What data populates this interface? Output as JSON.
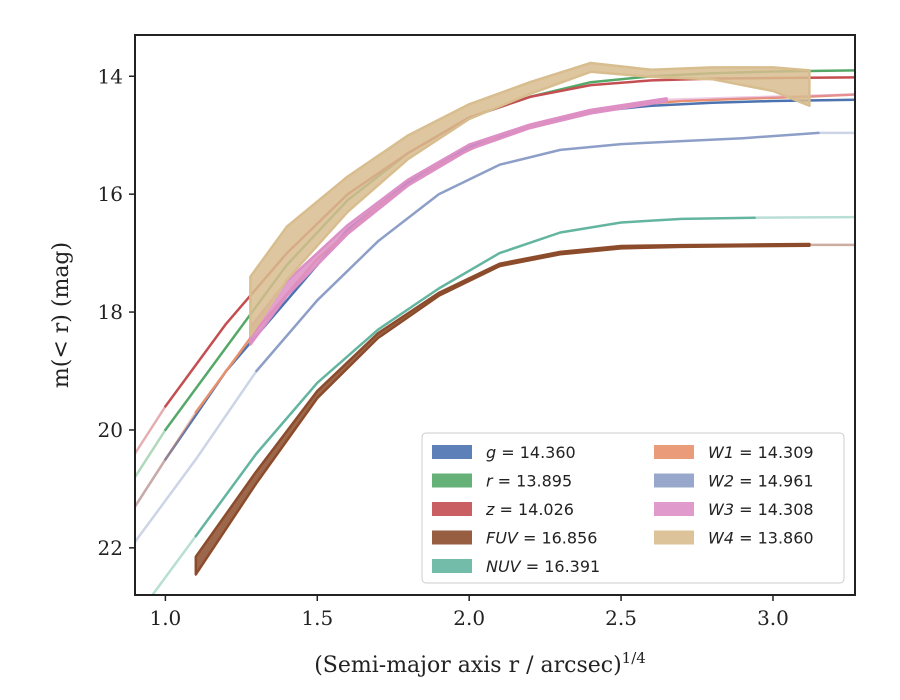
{
  "chart_data": {
    "type": "line",
    "xlabel": "(Semi-major axis r / arcsec)",
    "xlabel_sup": "1/4",
    "ylabel": "m(< r) (mag)",
    "xlim": [
      0.9,
      3.27
    ],
    "ylim": [
      22.8,
      13.3
    ],
    "y_inverted": true,
    "grid": false,
    "legend_position": "lower-right",
    "legend_columns": 2,
    "x_ticks": [
      "1.0",
      "1.5",
      "2.0",
      "2.5",
      "3.0"
    ],
    "y_ticks": [
      "14",
      "16",
      "18",
      "20",
      "22"
    ],
    "series": [
      {
        "name": "g = 14.360",
        "label_var": "g",
        "label_val": "14.360",
        "color": "#4c72b0",
        "x": [
          0.9,
          1.0,
          1.2,
          1.4,
          1.6,
          1.8,
          2.0,
          2.2,
          2.4,
          2.6,
          2.8,
          3.0,
          3.27
        ],
        "y": [
          21.3,
          20.5,
          19.0,
          17.8,
          16.6,
          15.8,
          15.2,
          14.85,
          14.6,
          14.5,
          14.45,
          14.42,
          14.4
        ],
        "width": [
          0,
          0,
          0,
          0,
          0,
          0,
          0,
          0,
          0,
          0,
          0,
          0,
          0
        ],
        "faint_before": 1.0
      },
      {
        "name": "r = 13.895",
        "label_var": "r",
        "label_val": "13.895",
        "color": "#55a868",
        "x": [
          0.9,
          1.0,
          1.2,
          1.4,
          1.6,
          1.8,
          2.0,
          2.2,
          2.4,
          2.6,
          2.8,
          3.0,
          3.27
        ],
        "y": [
          20.8,
          20.0,
          18.6,
          17.2,
          16.1,
          15.3,
          14.7,
          14.35,
          14.1,
          14.0,
          13.95,
          13.92,
          13.9
        ],
        "width": [
          0,
          0,
          0,
          0,
          0,
          0,
          0,
          0,
          0,
          0,
          0,
          0,
          0
        ],
        "faint_before": 1.0
      },
      {
        "name": "z = 14.026",
        "label_var": "z",
        "label_val": "14.026",
        "color": "#c44e52",
        "x": [
          0.9,
          1.0,
          1.2,
          1.4,
          1.6,
          1.8,
          2.0,
          2.2,
          2.4,
          2.6,
          2.8,
          3.0,
          3.27
        ],
        "y": [
          20.4,
          19.6,
          18.2,
          17.0,
          16.0,
          15.3,
          14.7,
          14.35,
          14.15,
          14.07,
          14.04,
          14.03,
          14.02
        ],
        "width": [
          0,
          0,
          0,
          0,
          0,
          0,
          0,
          0,
          0,
          0,
          0,
          0,
          0
        ],
        "faint_before": 1.0
      },
      {
        "name": "FUV = 16.856",
        "label_var": "FUV",
        "label_val": "16.856",
        "color": "#8c4c2c",
        "x": [
          1.1,
          1.3,
          1.5,
          1.7,
          1.9,
          2.1,
          2.3,
          2.5,
          2.7,
          2.9,
          3.12,
          3.27
        ],
        "y": [
          22.3,
          20.8,
          19.4,
          18.4,
          17.7,
          17.2,
          17.0,
          16.9,
          16.88,
          16.87,
          16.86,
          16.86
        ],
        "width": [
          0.3,
          0.2,
          0.12,
          0.08,
          0.05,
          0.04,
          0.04,
          0.04,
          0.03,
          0.03,
          0.03,
          0.03
        ],
        "faint_before": 1.1,
        "faint_after": 3.12
      },
      {
        "name": "NUV = 16.391",
        "label_var": "NUV",
        "label_val": "16.391",
        "color": "#64b5a0",
        "x": [
          0.9,
          1.1,
          1.3,
          1.5,
          1.7,
          1.9,
          2.1,
          2.3,
          2.5,
          2.7,
          2.94,
          3.27
        ],
        "y": [
          23.2,
          21.8,
          20.4,
          19.2,
          18.3,
          17.6,
          17.0,
          16.65,
          16.48,
          16.42,
          16.4,
          16.39
        ],
        "width": [
          0,
          0,
          0,
          0,
          0,
          0,
          0,
          0,
          0,
          0,
          0,
          0
        ],
        "faint_before": 1.1,
        "faint_after": 2.94
      },
      {
        "name": "W1 = 14.309",
        "label_var": "W1",
        "label_val": "14.309",
        "color": "#e8916b",
        "x": [
          0.9,
          1.1,
          1.3,
          1.5,
          1.7,
          1.9,
          2.1,
          2.3,
          2.5,
          2.7,
          2.9,
          3.1,
          3.27
        ],
        "y": [
          21.3,
          19.7,
          18.3,
          17.1,
          16.2,
          15.5,
          15.0,
          14.7,
          14.5,
          14.42,
          14.38,
          14.35,
          14.31
        ],
        "width": [
          0,
          0,
          0,
          0,
          0,
          0,
          0,
          0,
          0,
          0,
          0,
          0,
          0
        ],
        "faint_before": 1.1
      },
      {
        "name": "W2 = 14.961",
        "label_var": "W2",
        "label_val": "14.961",
        "color": "#8d9fc7",
        "x": [
          0.9,
          1.1,
          1.3,
          1.5,
          1.7,
          1.9,
          2.1,
          2.3,
          2.5,
          2.7,
          2.9,
          3.15,
          3.27
        ],
        "y": [
          21.9,
          20.5,
          19.0,
          17.8,
          16.8,
          16.0,
          15.5,
          15.25,
          15.15,
          15.1,
          15.05,
          14.96,
          14.96
        ],
        "width": [
          0,
          0,
          0,
          0,
          0,
          0,
          0,
          0,
          0,
          0,
          0,
          0,
          0
        ],
        "faint_before": 1.3,
        "faint_after": 3.15
      },
      {
        "name": "W3 = 14.308",
        "label_var": "W3",
        "label_val": "14.308",
        "color": "#dd8fc6",
        "x": [
          1.28,
          1.4,
          1.6,
          1.8,
          2.0,
          2.2,
          2.4,
          2.65,
          2.9,
          3.27
        ],
        "y": [
          18.4,
          17.6,
          16.6,
          15.8,
          15.2,
          14.85,
          14.6,
          14.4,
          14.36,
          14.31
        ],
        "width": [
          0.3,
          0.25,
          0.15,
          0.1,
          0.08,
          0.06,
          0.06,
          0.05,
          0.02,
          0.02
        ],
        "faint_after": 2.65
      },
      {
        "name": "W4 = 13.860",
        "label_var": "W4",
        "label_val": "13.860",
        "color": "#d8bd8f",
        "x": [
          1.28,
          1.4,
          1.6,
          1.8,
          2.0,
          2.2,
          2.4,
          2.6,
          2.8,
          3.0,
          3.12,
          3.27
        ],
        "y": [
          17.9,
          17.0,
          16.0,
          15.2,
          14.6,
          14.2,
          13.85,
          13.95,
          13.95,
          14.05,
          14.2,
          13.86
        ],
        "width": [
          1.0,
          0.9,
          0.6,
          0.4,
          0.25,
          0.2,
          0.15,
          0.12,
          0.2,
          0.4,
          0.6,
          0.05
        ],
        "faint_after": 3.14
      }
    ]
  }
}
